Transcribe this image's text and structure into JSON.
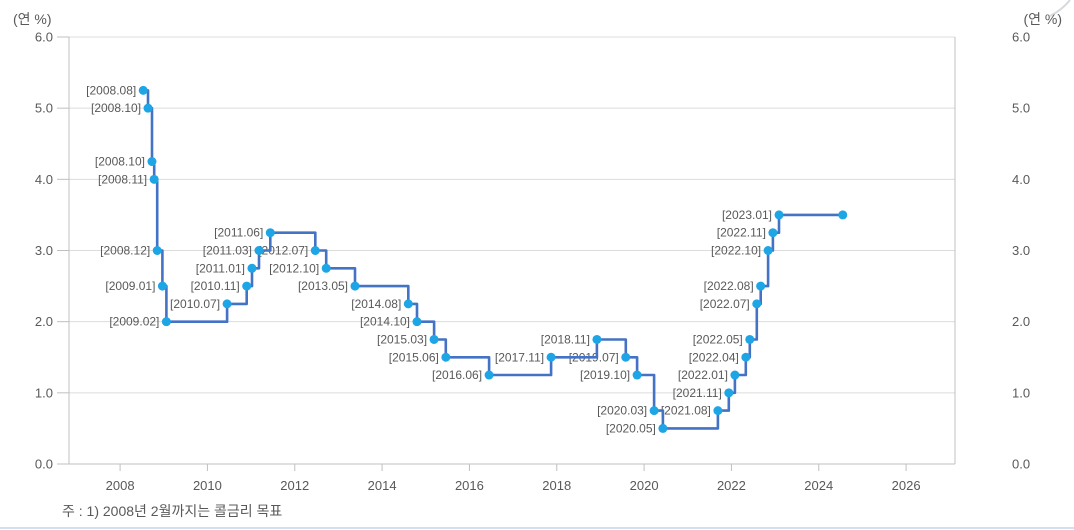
{
  "chart_data": {
    "type": "step-line",
    "title": "",
    "unit_label_left": "(연 %)",
    "unit_label_right": "(연 %)",
    "footnote": "주 : 1) 2008년 2월까지는 콜금리 목표",
    "legend": "none",
    "grid": "horizontal",
    "ylim": [
      0.0,
      6.0
    ],
    "y_ticks": [
      "6.0",
      "5.0",
      "4.0",
      "3.0",
      "2.0",
      "1.0",
      "0.0"
    ],
    "x_ticks": [
      2008,
      2010,
      2012,
      2014,
      2016,
      2018,
      2020,
      2022,
      2024,
      2026
    ],
    "x_range": [
      2006.83,
      2027.12
    ],
    "points": [
      {
        "label": "[2008.08]",
        "rate": 5.25,
        "t": 2008.53
      },
      {
        "label": "[2008.10]",
        "rate": 5.0,
        "t": 2008.64
      },
      {
        "label": "[2008.10]",
        "rate": 4.25,
        "t": 2008.73
      },
      {
        "label": "[2008.11]",
        "rate": 4.0,
        "t": 2008.78
      },
      {
        "label": "[2008.12]",
        "rate": 3.0,
        "t": 2008.85
      },
      {
        "label": "[2009.01]",
        "rate": 2.5,
        "t": 2008.97
      },
      {
        "label": "[2009.02]",
        "rate": 2.0,
        "t": 2009.06
      },
      {
        "label": "[2010.07]",
        "rate": 2.25,
        "t": 2010.45
      },
      {
        "label": "[2010.11]",
        "rate": 2.5,
        "t": 2010.9
      },
      {
        "label": "[2011.01]",
        "rate": 2.75,
        "t": 2011.02
      },
      {
        "label": "[2011.03]",
        "rate": 3.0,
        "t": 2011.18
      },
      {
        "label": "[2011.06]",
        "rate": 3.25,
        "t": 2011.44
      },
      {
        "label": "[2012.07]",
        "rate": 3.0,
        "t": 2012.47
      },
      {
        "label": "[2012.10]",
        "rate": 2.75,
        "t": 2012.72
      },
      {
        "label": "[2013.05]",
        "rate": 2.5,
        "t": 2013.38
      },
      {
        "label": "[2014.08]",
        "rate": 2.25,
        "t": 2014.6
      },
      {
        "label": "[2014.10]",
        "rate": 2.0,
        "t": 2014.8
      },
      {
        "label": "[2015.03]",
        "rate": 1.75,
        "t": 2015.19
      },
      {
        "label": "[2015.06]",
        "rate": 1.5,
        "t": 2015.46
      },
      {
        "label": "[2016.06]",
        "rate": 1.25,
        "t": 2016.45
      },
      {
        "label": "[2017.11]",
        "rate": 1.5,
        "t": 2017.87
      },
      {
        "label": "[2018.11]",
        "rate": 1.75,
        "t": 2018.92
      },
      {
        "label": "[2019.07]",
        "rate": 1.5,
        "t": 2019.58
      },
      {
        "label": "[2019.10]",
        "rate": 1.25,
        "t": 2019.84
      },
      {
        "label": "[2020.03]",
        "rate": 0.75,
        "t": 2020.23
      },
      {
        "label": "[2020.05]",
        "rate": 0.5,
        "t": 2020.43
      },
      {
        "label": "[2021.08]",
        "rate": 0.75,
        "t": 2021.69
      },
      {
        "label": "[2021.11]",
        "rate": 1.0,
        "t": 2021.94
      },
      {
        "label": "[2022.01]",
        "rate": 1.25,
        "t": 2022.08
      },
      {
        "label": "[2022.04]",
        "rate": 1.5,
        "t": 2022.33
      },
      {
        "label": "[2022.05]",
        "rate": 1.75,
        "t": 2022.42
      },
      {
        "label": "[2022.07]",
        "rate": 2.25,
        "t": 2022.58
      },
      {
        "label": "[2022.08]",
        "rate": 2.5,
        "t": 2022.67
      },
      {
        "label": "[2022.10]",
        "rate": 3.0,
        "t": 2022.84
      },
      {
        "label": "[2022.11]",
        "rate": 3.25,
        "t": 2022.95
      },
      {
        "label": "[2023.01]",
        "rate": 3.5,
        "t": 2023.09
      }
    ],
    "line_end": {
      "rate": 3.5,
      "t": 2024.55
    },
    "colors": {
      "line": "#4472c4",
      "marker": "#1ea5e5",
      "grid": "#dcdcdc",
      "axis": "#c0c0c0",
      "tick_text": "#595959",
      "label_text": "#595959",
      "divider": "#cfe0f1",
      "corner_mark": "#d6dadf"
    }
  }
}
